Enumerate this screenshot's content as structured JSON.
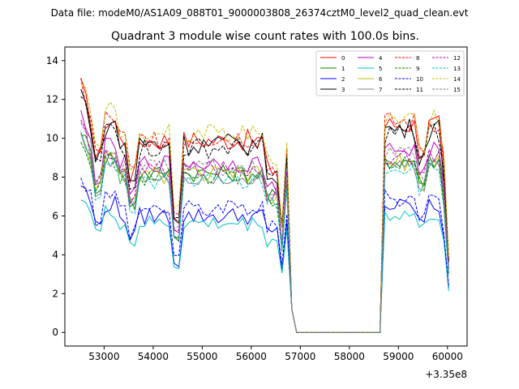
{
  "header": {
    "data_file": "Data file: modeM0/AS1A09_088T01_9000003808_26374cztM0_level2_quad_clean.evt"
  },
  "chart_data": {
    "type": "line",
    "title": "Quadrant 3 module wise count rates with 100.0s bins.",
    "xlabel": "",
    "ylabel": "",
    "x_offset_label": "+3.35e8",
    "xlim": [
      52200,
      60400
    ],
    "ylim": [
      -0.7,
      14.7
    ],
    "x_ticks": [
      53000,
      54000,
      55000,
      56000,
      57000,
      58000,
      59000,
      60000
    ],
    "x_tick_labels": [
      "53000",
      "54000",
      "55000",
      "56000",
      "57000",
      "58000",
      "59000",
      "60000"
    ],
    "y_ticks": [
      0,
      2,
      4,
      6,
      8,
      10,
      12,
      14
    ],
    "y_tick_labels": [
      "0",
      "2",
      "4",
      "6",
      "8",
      "10",
      "12",
      "14"
    ],
    "legend_position": "top-right",
    "series": [
      {
        "name": "0",
        "color": "#ff0000",
        "dash": "solid",
        "base": 9.9,
        "amp": 0.55
      },
      {
        "name": "1",
        "color": "#008000",
        "dash": "solid",
        "base": 8.2,
        "amp": 0.45
      },
      {
        "name": "2",
        "color": "#0000ff",
        "dash": "solid",
        "base": 6.0,
        "amp": 0.45
      },
      {
        "name": "3",
        "color": "#000000",
        "dash": "solid",
        "base": 9.7,
        "amp": 0.6
      },
      {
        "name": "4",
        "color": "#bf00bf",
        "dash": "solid",
        "base": 8.7,
        "amp": 0.45
      },
      {
        "name": "5",
        "color": "#00bfbf",
        "dash": "solid",
        "base": 5.6,
        "amp": 0.4
      },
      {
        "name": "6",
        "color": "#bfbf00",
        "dash": "solid",
        "base": 8.1,
        "amp": 0.45
      },
      {
        "name": "7",
        "color": "#808080",
        "dash": "solid",
        "base": 8.0,
        "amp": 0.4
      },
      {
        "name": "8",
        "color": "#ff0000",
        "dash": "dashed",
        "base": 10.0,
        "amp": 0.55
      },
      {
        "name": "9",
        "color": "#008000",
        "dash": "dashed",
        "base": 8.0,
        "amp": 0.45
      },
      {
        "name": "10",
        "color": "#0000ff",
        "dash": "dashed",
        "base": 6.4,
        "amp": 0.45
      },
      {
        "name": "11",
        "color": "#000000",
        "dash": "dashed",
        "base": 9.5,
        "amp": 0.55
      },
      {
        "name": "12",
        "color": "#bf00bf",
        "dash": "dashed",
        "base": 8.4,
        "amp": 0.45
      },
      {
        "name": "13",
        "color": "#00bfbf",
        "dash": "dashed",
        "base": 7.8,
        "amp": 0.4
      },
      {
        "name": "14",
        "color": "#bfbf00",
        "dash": "dashed",
        "base": 10.3,
        "amp": 0.55
      },
      {
        "name": "15",
        "color": "#808080",
        "dash": "dashed",
        "base": 8.5,
        "amp": 0.45
      }
    ],
    "time_bins": {
      "start": 52525,
      "step": 100,
      "count": 76
    },
    "segment_breaks": [
      {
        "x": 56630,
        "note": "drop"
      },
      {
        "x": 56730,
        "note": "spike"
      },
      {
        "x": 56830,
        "note": "fall"
      },
      {
        "x": 56930,
        "value": 0
      },
      {
        "x": 58630,
        "value": 0
      }
    ]
  }
}
